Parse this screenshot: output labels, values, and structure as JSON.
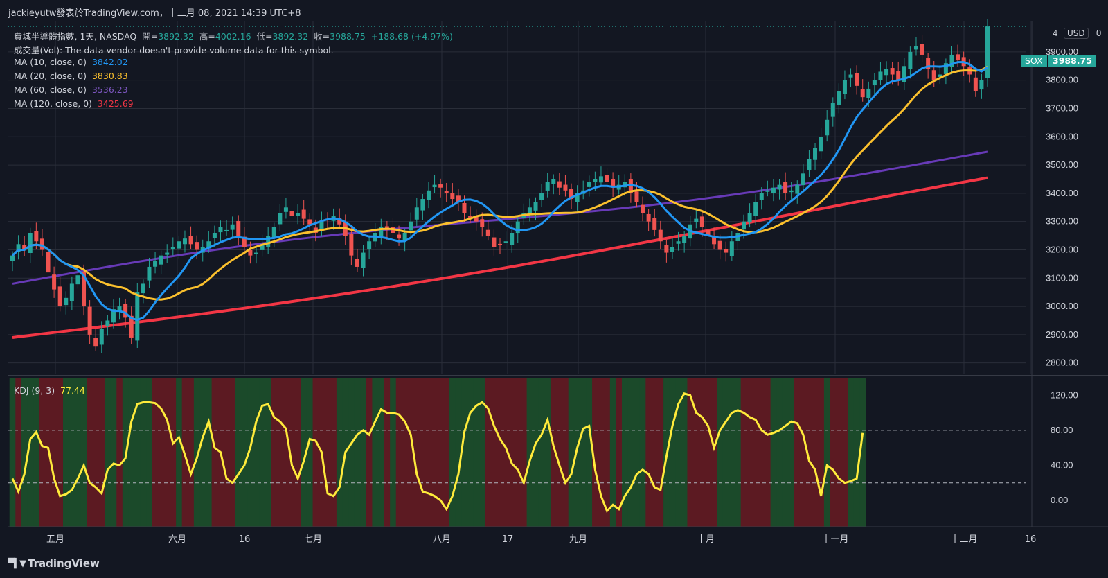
{
  "header": {
    "text": "jackieyutw發表於TradingView.com，十二月 08, 2021 14:39 UTC+8"
  },
  "brand": {
    "name": "TradingView"
  },
  "currency": "USD",
  "symbol_tag": "SOX",
  "last_price": "3988.75",
  "axis_top_value": "4",
  "axis_top_suffix": "0",
  "legend": {
    "title": "費城半導體指數, 1天, NASDAQ",
    "open_label": "開=",
    "open": "3892.32",
    "high_label": "高=",
    "high": "4002.16",
    "low_label": "低=",
    "low": "3892.32",
    "close_label": "收=",
    "close": "3988.75",
    "change": "+188.68 (+4.97%)",
    "volume_note": "成交量(Vol): The data vendor doesn't provide volume data for this symbol.",
    "ma10_label": "MA (10, close, 0)",
    "ma10": "3842.02",
    "ma20_label": "MA (20, close, 0)",
    "ma20": "3830.83",
    "ma60_label": "MA (60, close, 0)",
    "ma60": "3536.23",
    "ma120_label": "MA (120, close, 0)",
    "ma120": "3425.69",
    "kdj_label": "KDJ (9, 3)",
    "kdj": "77.44"
  },
  "colors": {
    "bg": "#131722",
    "grid": "#2a2e39",
    "up": "#26a69a",
    "down": "#ef5350",
    "ma10": "#2196f3",
    "ma20": "#fbc02d",
    "ma60": "#673ab7",
    "ma120": "#f23645",
    "kdj": "#ffeb3b",
    "kdj_green_bg": "#1b4a2a",
    "kdj_red_bg": "#5c1a22"
  },
  "chart_data": [
    {
      "type": "candlestick",
      "title": "費城半導體指數",
      "y_ticks": [
        "3900.00",
        "3800.00",
        "3700.00",
        "3600.00",
        "3500.00",
        "3400.00",
        "3300.00",
        "3200.00",
        "3100.00",
        "3000.00",
        "2900.00",
        "2800.00"
      ],
      "ylim": [
        2760,
        4010
      ],
      "x_ticks": [
        "五月",
        "六月",
        "16",
        "七月",
        "八月",
        "17",
        "九月",
        "十月",
        "十一月",
        "十二月",
        "16"
      ],
      "closes": [
        3180,
        3220,
        3200,
        3260,
        3230,
        3200,
        3120,
        3060,
        3000,
        3030,
        3080,
        3110,
        3000,
        2900,
        2860,
        2920,
        2950,
        2990,
        3000,
        2960,
        2890,
        3050,
        3080,
        3140,
        3160,
        3180,
        3190,
        3210,
        3230,
        3240,
        3220,
        3200,
        3210,
        3230,
        3260,
        3280,
        3270,
        3290,
        3250,
        3210,
        3180,
        3190,
        3220,
        3250,
        3280,
        3330,
        3350,
        3320,
        3330,
        3310,
        3290,
        3260,
        3300,
        3310,
        3320,
        3290,
        3250,
        3180,
        3140,
        3190,
        3230,
        3260,
        3280,
        3270,
        3260,
        3240,
        3260,
        3300,
        3350,
        3380,
        3410,
        3430,
        3420,
        3400,
        3380,
        3370,
        3330,
        3310,
        3300,
        3280,
        3250,
        3210,
        3220,
        3230,
        3260,
        3300,
        3330,
        3350,
        3370,
        3400,
        3440,
        3450,
        3420,
        3410,
        3380,
        3400,
        3410,
        3440,
        3450,
        3460,
        3440,
        3420,
        3430,
        3440,
        3400,
        3370,
        3330,
        3300,
        3270,
        3230,
        3190,
        3210,
        3230,
        3250,
        3290,
        3310,
        3280,
        3250,
        3220,
        3200,
        3190,
        3230,
        3260,
        3300,
        3330,
        3370,
        3400,
        3410,
        3420,
        3430,
        3400,
        3410,
        3430,
        3470,
        3520,
        3560,
        3600,
        3660,
        3720,
        3760,
        3800,
        3820,
        3780,
        3740,
        3770,
        3800,
        3830,
        3840,
        3820,
        3800,
        3850,
        3900,
        3920,
        3890,
        3840,
        3800,
        3820,
        3860,
        3890,
        3870,
        3850,
        3820,
        3760,
        3800,
        3990
      ]
    },
    {
      "type": "line",
      "title": "KDJ (9, 3)",
      "y_ticks": [
        "120.00",
        "80.00",
        "40.00",
        "0.00"
      ],
      "ylim": [
        -30,
        140
      ],
      "values": [
        25,
        10,
        30,
        70,
        78,
        62,
        60,
        25,
        5,
        7,
        12,
        25,
        40,
        20,
        15,
        8,
        35,
        42,
        40,
        48,
        90,
        110,
        112,
        112,
        111,
        105,
        92,
        65,
        72,
        52,
        30,
        48,
        72,
        90,
        60,
        55,
        25,
        20,
        30,
        40,
        60,
        90,
        108,
        110,
        95,
        90,
        82,
        40,
        25,
        45,
        70,
        68,
        55,
        8,
        5,
        15,
        55,
        65,
        75,
        80,
        75,
        90,
        104,
        100,
        100,
        98,
        90,
        75,
        30,
        10,
        8,
        5,
        0,
        -10,
        5,
        30,
        78,
        100,
        108,
        112,
        105,
        85,
        70,
        60,
        42,
        35,
        20,
        45,
        65,
        75,
        92,
        62,
        40,
        20,
        30,
        60,
        82,
        85,
        35,
        5,
        -12,
        -5,
        -10,
        5,
        15,
        30,
        35,
        30,
        15,
        12,
        50,
        85,
        110,
        122,
        120,
        100,
        95,
        85,
        60,
        80,
        90,
        100,
        103,
        100,
        95,
        92,
        80,
        75,
        77,
        80,
        85,
        90,
        88,
        75,
        45,
        35,
        5,
        40,
        35,
        25,
        20,
        22,
        25,
        77
      ]
    }
  ]
}
